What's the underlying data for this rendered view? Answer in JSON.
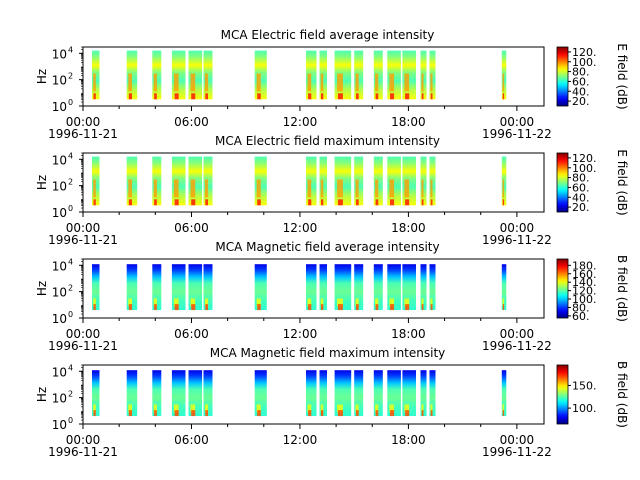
{
  "chart_data": [
    {
      "type": "heatmap",
      "title": "MCA  Electric field average intensity",
      "ylabel": "Hz",
      "y_scale": "log",
      "ylim": [
        1,
        30000
      ],
      "y_ticks": [
        {
          "v": 1,
          "b": "10",
          "e": "0"
        },
        {
          "v": 100,
          "b": "10",
          "e": "2"
        },
        {
          "v": 10000,
          "b": "10",
          "e": "4"
        }
      ],
      "xlim": [
        "1996-11-21 00:00",
        "1996-11-22 01:30"
      ],
      "x_ticks": [
        {
          "t": "00:00",
          "d": "1996-11-21"
        },
        {
          "t": "06:00",
          "d": ""
        },
        {
          "t": "12:00",
          "d": ""
        },
        {
          "t": "18:00",
          "d": ""
        },
        {
          "t": "00:00",
          "d": "1996-11-22"
        }
      ],
      "colorbar": {
        "label": "E field (dB)",
        "ticks": [
          "20.",
          "40.",
          "60.",
          "80.",
          "100.",
          "120."
        ],
        "range": [
          10,
          130
        ]
      },
      "style": "efield"
    },
    {
      "type": "heatmap",
      "title": "MCA  Electric field maximum intensity",
      "ylabel": "Hz",
      "y_scale": "log",
      "ylim": [
        1,
        30000
      ],
      "y_ticks": [
        {
          "v": 1,
          "b": "10",
          "e": "0"
        },
        {
          "v": 100,
          "b": "10",
          "e": "2"
        },
        {
          "v": 10000,
          "b": "10",
          "e": "4"
        }
      ],
      "xlim": [
        "1996-11-21 00:00",
        "1996-11-22 01:30"
      ],
      "x_ticks": [
        {
          "t": "00:00",
          "d": "1996-11-21"
        },
        {
          "t": "06:00",
          "d": ""
        },
        {
          "t": "12:00",
          "d": ""
        },
        {
          "t": "18:00",
          "d": ""
        },
        {
          "t": "00:00",
          "d": "1996-11-22"
        }
      ],
      "colorbar": {
        "label": "E field (dB)",
        "ticks": [
          "20.",
          "40.",
          "60.",
          "80.",
          "100.",
          "120."
        ],
        "range": [
          10,
          130
        ]
      },
      "style": "efield"
    },
    {
      "type": "heatmap",
      "title": "MCA  Magnetic field average intensity",
      "ylabel": "Hz",
      "y_scale": "log",
      "ylim": [
        1,
        30000
      ],
      "y_ticks": [
        {
          "v": 1,
          "b": "10",
          "e": "0"
        },
        {
          "v": 100,
          "b": "10",
          "e": "2"
        },
        {
          "v": 10000,
          "b": "10",
          "e": "4"
        }
      ],
      "xlim": [
        "1996-11-21 00:00",
        "1996-11-22 01:30"
      ],
      "x_ticks": [
        {
          "t": "00:00",
          "d": "1996-11-21"
        },
        {
          "t": "06:00",
          "d": ""
        },
        {
          "t": "12:00",
          "d": ""
        },
        {
          "t": "18:00",
          "d": ""
        },
        {
          "t": "00:00",
          "d": "1996-11-22"
        }
      ],
      "colorbar": {
        "label": "B field (dB)",
        "ticks": [
          "60.",
          "80.",
          "100.",
          "120.",
          "140.",
          "160.",
          "180."
        ],
        "range": [
          55,
          195
        ]
      },
      "style": "bfield"
    },
    {
      "type": "heatmap",
      "title": "MCA  Magnetic field maximum intensity",
      "ylabel": "Hz",
      "y_scale": "log",
      "ylim": [
        1,
        30000
      ],
      "y_ticks": [
        {
          "v": 1,
          "b": "10",
          "e": "0"
        },
        {
          "v": 100,
          "b": "10",
          "e": "2"
        },
        {
          "v": 10000,
          "b": "10",
          "e": "4"
        }
      ],
      "xlim": [
        "1996-11-21 00:00",
        "1996-11-22 01:30"
      ],
      "x_ticks": [
        {
          "t": "00:00",
          "d": "1996-11-21"
        },
        {
          "t": "06:00",
          "d": ""
        },
        {
          "t": "12:00",
          "d": ""
        },
        {
          "t": "18:00",
          "d": ""
        },
        {
          "t": "00:00",
          "d": "1996-11-22"
        }
      ],
      "colorbar": {
        "label": "B field (dB)",
        "ticks": [
          "100.",
          "150."
        ],
        "range": [
          65,
          195
        ]
      },
      "style": "bfield"
    }
  ],
  "data_intervals": [
    [
      "00:30",
      "00:55"
    ],
    [
      "02:25",
      "03:00"
    ],
    [
      "03:50",
      "04:20"
    ],
    [
      "04:55",
      "05:40"
    ],
    [
      "05:50",
      "06:35"
    ],
    [
      "06:40",
      "07:10"
    ],
    [
      "09:30",
      "10:10"
    ],
    [
      "12:20",
      "12:55"
    ],
    [
      "13:05",
      "13:30"
    ],
    [
      "13:55",
      "14:50"
    ],
    [
      "15:00",
      "15:30"
    ],
    [
      "16:05",
      "16:35"
    ],
    [
      "16:50",
      "17:35"
    ],
    [
      "17:40",
      "18:25"
    ],
    [
      "18:40",
      "19:00"
    ],
    [
      "19:10",
      "19:30"
    ],
    [
      "23:10",
      "23:25"
    ]
  ]
}
